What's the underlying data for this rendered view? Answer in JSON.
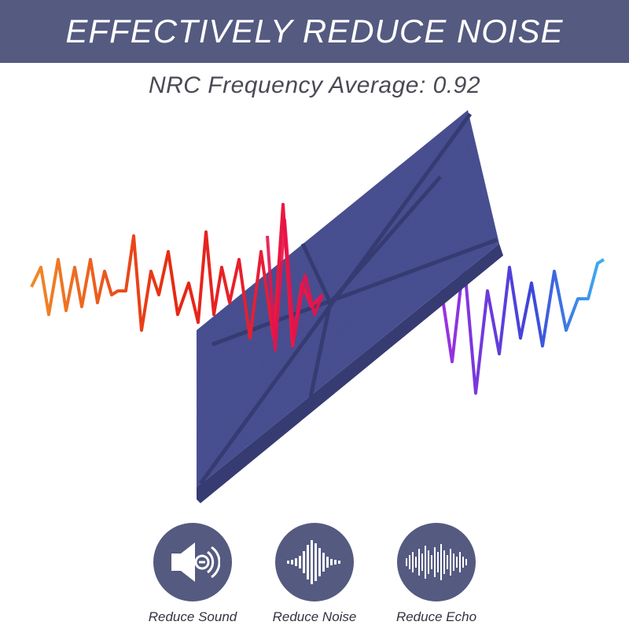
{
  "header": {
    "title": "EFFECTIVELY REDUCE NOISE",
    "background": "#555a80"
  },
  "subtitle": "NRC Frequency Average: 0.92",
  "panel": {
    "color": "#4d5496",
    "groove_color": "#363b72"
  },
  "features": [
    {
      "label": "Reduce Sound",
      "icon": "speaker-icon"
    },
    {
      "label": "Reduce Noise",
      "icon": "sound-wave-icon"
    },
    {
      "label": "Reduce Echo",
      "icon": "audio-spectrum-icon"
    }
  ],
  "colors": {
    "circle": "#555a80",
    "wave_warm": [
      "#f07a20",
      "#e83010",
      "#e8124a"
    ],
    "wave_cool": [
      "#9b30e0",
      "#4050e0",
      "#3aa0f0"
    ]
  }
}
